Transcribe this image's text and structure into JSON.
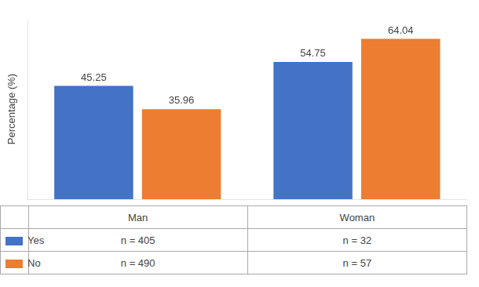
{
  "chart_data": {
    "type": "bar",
    "categories": [
      "Man",
      "Woman"
    ],
    "series": [
      {
        "name": "Yes",
        "color": "#4472C4",
        "values": [
          45.25,
          54.75
        ],
        "n_labels": [
          "n = 405",
          "n = 32"
        ]
      },
      {
        "name": "No",
        "color": "#ED7D31",
        "values": [
          35.96,
          64.04
        ],
        "n_labels": [
          "n = 490",
          "n = 57"
        ]
      }
    ],
    "ylabel": "Percentage (%)",
    "ylim": [
      0,
      72
    ],
    "grid": false,
    "data_labels": true,
    "tick_labels": false
  }
}
